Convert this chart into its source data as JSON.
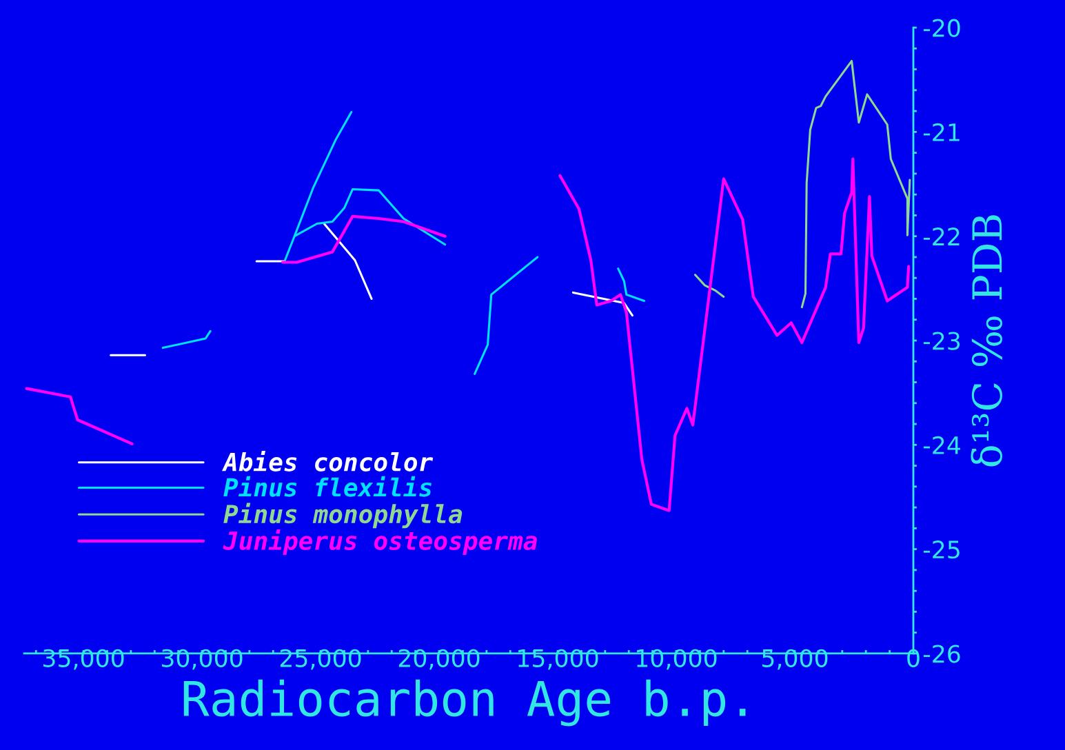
{
  "chart_data": {
    "type": "line",
    "xlabel": "Radiocarbon Age b.p.",
    "ylabel": "δ¹³C ‰ PDB",
    "xlim": [
      37500,
      0
    ],
    "ylim": [
      -26,
      -20
    ],
    "xticks": [
      {
        "value": 37000,
        "label": null
      },
      {
        "value": 36000,
        "label": null
      },
      {
        "value": 35000,
        "label": "35,000"
      },
      {
        "value": 34000,
        "label": null
      },
      {
        "value": 33000,
        "label": null
      },
      {
        "value": 32000,
        "label": null
      },
      {
        "value": 31000,
        "label": null
      },
      {
        "value": 30000,
        "label": "30,000"
      },
      {
        "value": 29000,
        "label": null
      },
      {
        "value": 28000,
        "label": null
      },
      {
        "value": 27000,
        "label": null
      },
      {
        "value": 26000,
        "label": null
      },
      {
        "value": 25000,
        "label": "25,000"
      },
      {
        "value": 24000,
        "label": null
      },
      {
        "value": 23000,
        "label": null
      },
      {
        "value": 22000,
        "label": null
      },
      {
        "value": 21000,
        "label": null
      },
      {
        "value": 20000,
        "label": "20,000"
      },
      {
        "value": 19000,
        "label": null
      },
      {
        "value": 18000,
        "label": null
      },
      {
        "value": 17000,
        "label": null
      },
      {
        "value": 16000,
        "label": null
      },
      {
        "value": 15000,
        "label": "15,000"
      },
      {
        "value": 14000,
        "label": null
      },
      {
        "value": 13000,
        "label": null
      },
      {
        "value": 12000,
        "label": null
      },
      {
        "value": 11000,
        "label": null
      },
      {
        "value": 10000,
        "label": "10,000"
      },
      {
        "value": 9000,
        "label": null
      },
      {
        "value": 8000,
        "label": null
      },
      {
        "value": 7000,
        "label": null
      },
      {
        "value": 6000,
        "label": null
      },
      {
        "value": 5000,
        "label": "5,000"
      },
      {
        "value": 4000,
        "label": null
      },
      {
        "value": 3000,
        "label": null
      },
      {
        "value": 2000,
        "label": null
      },
      {
        "value": 1000,
        "label": null
      },
      0
    ],
    "yticks": [
      -26,
      {
        "value": -25.8,
        "label": null
      },
      {
        "value": -25.6,
        "label": null
      },
      {
        "value": -25.4,
        "label": null
      },
      {
        "value": -25.2,
        "label": null
      },
      -25,
      {
        "value": -24.8,
        "label": null
      },
      {
        "value": -24.6,
        "label": null
      },
      {
        "value": -24.4,
        "label": null
      },
      {
        "value": -24.2,
        "label": null
      },
      -24,
      {
        "value": -23.8,
        "label": null
      },
      {
        "value": -23.6,
        "label": null
      },
      {
        "value": -23.4,
        "label": null
      },
      {
        "value": -23.2,
        "label": null
      },
      -23,
      {
        "value": -22.8,
        "label": null
      },
      {
        "value": -22.6,
        "label": null
      },
      {
        "value": -22.4,
        "label": null
      },
      {
        "value": -22.2,
        "label": null
      },
      -22,
      {
        "value": -21.8,
        "label": null
      },
      {
        "value": -21.6,
        "label": null
      },
      {
        "value": -21.4,
        "label": null
      },
      {
        "value": -21.2,
        "label": null
      },
      -21,
      {
        "value": -20.8,
        "label": null
      },
      {
        "value": -20.6,
        "label": null
      },
      {
        "value": -20.4,
        "label": null
      },
      {
        "value": -20.2,
        "label": null
      },
      -20
    ],
    "grid": false,
    "legend": "bottom left",
    "marker": "none",
    "line_style": "solid",
    "series": [
      {
        "name": "Abies concolor",
        "color": "#ffffff",
        "x": [
          33850,
          32400,
          null,
          27700,
          26500,
          null,
          24850,
          23550,
          22850,
          null,
          14350,
          12200,
          11850
        ],
        "values": [
          -23.14,
          -23.14,
          null,
          -22.24,
          -22.24,
          null,
          -21.88,
          -22.23,
          -22.6,
          null,
          -22.54,
          -22.64,
          -22.76
        ]
      },
      {
        "name": "Pinus flexilis",
        "color": "#00e0ff",
        "x": [
          31650,
          29850,
          29650,
          null,
          26500,
          26100,
          25300,
          24350,
          23700,
          null,
          26100,
          25150,
          24500,
          24000,
          23650,
          22550,
          21500,
          19750,
          null,
          18500,
          17950,
          17800,
          15850,
          null,
          12450,
          12200,
          12100,
          11350
        ],
        "values": [
          -23.07,
          -22.98,
          -22.91,
          null,
          -22.23,
          -22.0,
          -21.53,
          -21.07,
          -20.81,
          null,
          -22.0,
          -21.88,
          -21.86,
          -21.73,
          -21.55,
          -21.56,
          -21.83,
          -22.08,
          null,
          -23.32,
          -23.04,
          -22.56,
          -22.2,
          null,
          -22.31,
          -22.43,
          -22.56,
          -22.62
        ]
      },
      {
        "name": "Pinus monophylla",
        "color": "#8fd88f",
        "x": [
          9200,
          8800,
          8350,
          8000,
          null,
          4700,
          4550,
          4500,
          4350,
          4100,
          3900,
          3700,
          2600,
          2300,
          1950,
          1100,
          950,
          250,
          250,
          150
        ],
        "values": [
          -22.37,
          -22.47,
          -22.52,
          -22.58,
          null,
          -22.68,
          -22.55,
          -21.49,
          -20.98,
          -20.77,
          -20.75,
          -20.66,
          -20.32,
          -20.91,
          -20.64,
          -20.93,
          -21.26,
          -21.64,
          -21.99,
          -21.46
        ]
      },
      {
        "name": "Juniperus osteosperma",
        "color": "#ff00ff",
        "x": [
          37400,
          35550,
          35250,
          32950,
          null,
          26600,
          26000,
          24500,
          23650,
          22550,
          21500,
          19750,
          null,
          14900,
          14100,
          13600,
          13350,
          12750,
          12350,
          12100,
          11450,
          11050,
          10300,
          10050,
          9550,
          9300,
          8000,
          7200,
          6750,
          5750,
          5150,
          4700,
          3700,
          3500,
          3050,
          2900,
          2600,
          2550,
          2300,
          2100,
          1850,
          1750,
          1100,
          250,
          200
        ],
        "values": [
          -23.46,
          -23.54,
          -23.76,
          -23.99,
          null,
          -22.25,
          -22.25,
          -22.15,
          -21.81,
          -21.83,
          -21.86,
          -22.0,
          null,
          -21.42,
          -21.74,
          -22.23,
          -22.66,
          -22.62,
          -22.56,
          -22.73,
          -24.14,
          -24.57,
          -24.63,
          -23.91,
          -23.65,
          -23.81,
          -21.45,
          -21.84,
          -22.58,
          -22.95,
          -22.83,
          -23.02,
          -22.49,
          -22.17,
          -22.17,
          -21.78,
          -21.58,
          -21.26,
          -23.02,
          -22.88,
          -21.62,
          -22.19,
          -22.62,
          -22.49,
          -22.29
        ]
      }
    ]
  }
}
